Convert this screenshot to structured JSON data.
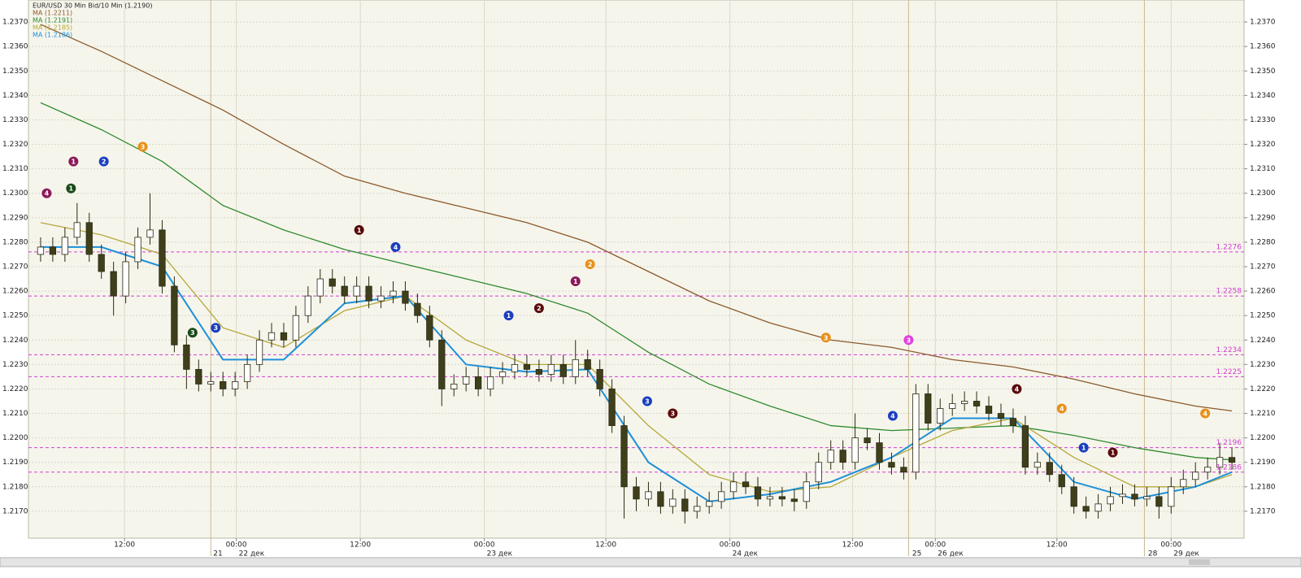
{
  "chart_data": {
    "type": "candlestick",
    "title": "EUR/USD 30 Min Bid/10 Min (1.2190)",
    "xlim": [
      0,
      100
    ],
    "ylim": [
      1.2159,
      1.2379
    ],
    "yticks": [
      {
        "value": 1.217,
        "label": "1.2170"
      },
      {
        "value": 1.218,
        "label": "1.2180"
      },
      {
        "value": 1.219,
        "label": "1.2190"
      },
      {
        "value": 1.22,
        "label": "1.2200"
      },
      {
        "value": 1.221,
        "label": "1.2210"
      },
      {
        "value": 1.222,
        "label": "1.2220"
      },
      {
        "value": 1.223,
        "label": "1.2230"
      },
      {
        "value": 1.224,
        "label": "1.2240"
      },
      {
        "value": 1.225,
        "label": "1.2250"
      },
      {
        "value": 1.226,
        "label": "1.2260"
      },
      {
        "value": 1.227,
        "label": "1.2270"
      },
      {
        "value": 1.228,
        "label": "1.2280"
      },
      {
        "value": 1.229,
        "label": "1.2290"
      },
      {
        "value": 1.23,
        "label": "1.2300"
      },
      {
        "value": 1.231,
        "label": "1.2310"
      },
      {
        "value": 1.232,
        "label": "1.2320"
      },
      {
        "value": 1.233,
        "label": "1.2330"
      },
      {
        "value": 1.234,
        "label": "1.2340"
      },
      {
        "value": 1.235,
        "label": "1.2350"
      },
      {
        "value": 1.236,
        "label": "1.2360"
      },
      {
        "value": 1.237,
        "label": "1.2370"
      }
    ],
    "xticks": [
      {
        "value": 7.9,
        "label": "12:00"
      },
      {
        "value": 17.1,
        "label": "00:00"
      },
      {
        "value": 27.3,
        "label": "12:00"
      },
      {
        "value": 37.5,
        "label": "00:00"
      },
      {
        "value": 47.5,
        "label": "12:00"
      },
      {
        "value": 57.7,
        "label": "00:00"
      },
      {
        "value": 67.8,
        "label": "12:00"
      },
      {
        "value": 74.6,
        "label": "00:00"
      },
      {
        "value": 84.6,
        "label": "12:00"
      },
      {
        "value": 94.0,
        "label": "00:00"
      }
    ],
    "date_ticks": [
      {
        "value": 15.2,
        "label": "21"
      },
      {
        "value": 17.3,
        "label": "22 дек"
      },
      {
        "value": 37.7,
        "label": "23 дек"
      },
      {
        "value": 57.9,
        "label": "24 дек"
      },
      {
        "value": 72.7,
        "label": "25"
      },
      {
        "value": 74.8,
        "label": "26 дек"
      },
      {
        "value": 92.1,
        "label": "28"
      },
      {
        "value": 94.2,
        "label": "29 дек"
      }
    ],
    "session_lines": [
      15.0,
      72.4,
      91.8
    ],
    "grid": true,
    "up_color": "#ffffff",
    "down_color": "#3f3f1c",
    "candles": {
      "x": [
        1,
        2,
        3,
        4,
        5,
        6,
        7,
        8,
        9,
        10,
        11,
        12,
        13,
        14,
        15,
        16,
        17,
        18,
        19,
        20,
        21,
        22,
        23,
        24,
        25,
        26,
        27,
        28,
        29,
        30,
        31,
        32,
        33,
        34,
        35,
        36,
        37,
        38,
        39,
        40,
        41,
        42,
        43,
        44,
        45,
        46,
        47,
        48,
        49,
        50,
        51,
        52,
        53,
        54,
        55,
        56,
        57,
        58,
        59,
        60,
        61,
        62,
        63,
        64,
        65,
        66,
        67,
        68,
        69,
        70,
        71,
        72,
        73,
        74,
        75,
        76,
        77,
        78,
        79,
        80,
        81,
        82,
        83,
        84,
        85,
        86,
        87,
        88,
        89,
        90,
        91,
        92,
        93,
        94,
        95,
        96,
        97,
        98,
        99
      ],
      "open": [
        1.2275,
        1.2278,
        1.2275,
        1.2282,
        1.2288,
        1.2275,
        1.2268,
        1.2258,
        1.2272,
        1.2282,
        1.2285,
        1.2262,
        1.2238,
        1.2228,
        1.2222,
        1.2223,
        1.222,
        1.2223,
        1.223,
        1.224,
        1.2243,
        1.224,
        1.225,
        1.2258,
        1.2265,
        1.2262,
        1.2258,
        1.2262,
        1.2256,
        1.2258,
        1.226,
        1.2255,
        1.225,
        1.224,
        1.222,
        1.2222,
        1.2225,
        1.222,
        1.2225,
        1.2227,
        1.223,
        1.2228,
        1.2226,
        1.223,
        1.2225,
        1.2232,
        1.2228,
        1.222,
        1.2205,
        1.218,
        1.2175,
        1.2178,
        1.2172,
        1.2175,
        1.217,
        1.2172,
        1.2174,
        1.2178,
        1.2182,
        1.218,
        1.2175,
        1.2176,
        1.2175,
        1.2174,
        1.2182,
        1.219,
        1.2195,
        1.219,
        1.22,
        1.2198,
        1.219,
        1.2188,
        1.2186,
        1.2218,
        1.2206,
        1.2212,
        1.2214,
        1.2215,
        1.2213,
        1.221,
        1.2208,
        1.2205,
        1.2188,
        1.219,
        1.2185,
        1.218,
        1.2172,
        1.217,
        1.2173,
        1.2176,
        1.2177,
        1.2175,
        1.2176,
        1.2172,
        1.218,
        1.2183,
        1.2186,
        1.2188,
        1.2192
      ],
      "high": [
        1.2282,
        1.2282,
        1.2286,
        1.2296,
        1.2292,
        1.2279,
        1.2272,
        1.2276,
        1.2286,
        1.23,
        1.2289,
        1.2266,
        1.2242,
        1.2232,
        1.2227,
        1.2227,
        1.2227,
        1.2234,
        1.2244,
        1.2247,
        1.2247,
        1.2254,
        1.2262,
        1.2269,
        1.2269,
        1.2266,
        1.2266,
        1.2266,
        1.2262,
        1.2264,
        1.2264,
        1.2259,
        1.2254,
        1.2244,
        1.2226,
        1.2229,
        1.2229,
        1.2229,
        1.2231,
        1.2234,
        1.2234,
        1.2232,
        1.2234,
        1.2234,
        1.224,
        1.2236,
        1.2232,
        1.2224,
        1.2209,
        1.2184,
        1.2182,
        1.2182,
        1.2179,
        1.2179,
        1.2176,
        1.2178,
        1.2182,
        1.2186,
        1.2186,
        1.2184,
        1.218,
        1.218,
        1.2179,
        1.2186,
        1.2194,
        1.2199,
        1.2199,
        1.221,
        1.2204,
        1.2202,
        1.2194,
        1.2192,
        1.2222,
        1.2222,
        1.2216,
        1.2218,
        1.2219,
        1.2219,
        1.2217,
        1.2214,
        1.2212,
        1.2209,
        1.2194,
        1.2194,
        1.2189,
        1.2184,
        1.2176,
        1.2177,
        1.218,
        1.2181,
        1.2181,
        1.218,
        1.218,
        1.2184,
        1.2187,
        1.219,
        1.2192,
        1.2198,
        1.2196
      ],
      "low": [
        1.2272,
        1.2272,
        1.2272,
        1.2279,
        1.2272,
        1.2265,
        1.225,
        1.2255,
        1.2269,
        1.2279,
        1.2259,
        1.2235,
        1.222,
        1.2219,
        1.2219,
        1.2217,
        1.2217,
        1.222,
        1.2227,
        1.2237,
        1.2237,
        1.2237,
        1.2247,
        1.2255,
        1.2259,
        1.2255,
        1.2255,
        1.2253,
        1.2253,
        1.2255,
        1.2252,
        1.2247,
        1.2237,
        1.2213,
        1.2217,
        1.2219,
        1.2217,
        1.2217,
        1.2222,
        1.2224,
        1.2225,
        1.2223,
        1.2223,
        1.2222,
        1.2222,
        1.2225,
        1.2217,
        1.2202,
        1.2167,
        1.217,
        1.2172,
        1.2169,
        1.2169,
        1.2165,
        1.2167,
        1.2169,
        1.2171,
        1.2175,
        1.2177,
        1.2172,
        1.2172,
        1.2172,
        1.217,
        1.2171,
        1.2179,
        1.2187,
        1.2187,
        1.2187,
        1.2195,
        1.2187,
        1.2185,
        1.2183,
        1.2183,
        1.2203,
        1.2203,
        1.2209,
        1.2211,
        1.221,
        1.2207,
        1.2205,
        1.2202,
        1.2185,
        1.2185,
        1.2182,
        1.2177,
        1.2169,
        1.2167,
        1.2167,
        1.217,
        1.2173,
        1.2172,
        1.2172,
        1.2167,
        1.2169,
        1.2177,
        1.218,
        1.2183,
        1.2185,
        1.2187
      ],
      "close": [
        1.2278,
        1.2275,
        1.2282,
        1.2288,
        1.2275,
        1.2268,
        1.2258,
        1.2272,
        1.2282,
        1.2285,
        1.2262,
        1.2238,
        1.2228,
        1.2222,
        1.2223,
        1.222,
        1.2223,
        1.223,
        1.224,
        1.2243,
        1.224,
        1.225,
        1.2258,
        1.2265,
        1.2262,
        1.2258,
        1.2262,
        1.2256,
        1.2258,
        1.226,
        1.2255,
        1.225,
        1.224,
        1.222,
        1.2222,
        1.2225,
        1.222,
        1.2225,
        1.2227,
        1.223,
        1.2228,
        1.2226,
        1.223,
        1.2225,
        1.2232,
        1.2228,
        1.222,
        1.2205,
        1.218,
        1.2175,
        1.2178,
        1.2172,
        1.2175,
        1.217,
        1.2172,
        1.2174,
        1.2178,
        1.2182,
        1.218,
        1.2175,
        1.2176,
        1.2175,
        1.2174,
        1.2182,
        1.219,
        1.2195,
        1.219,
        1.22,
        1.2198,
        1.219,
        1.2188,
        1.2186,
        1.2218,
        1.2206,
        1.2212,
        1.2214,
        1.2215,
        1.2213,
        1.221,
        1.2208,
        1.2205,
        1.2188,
        1.219,
        1.2185,
        1.218,
        1.2172,
        1.217,
        1.2173,
        1.2176,
        1.2177,
        1.2175,
        1.2176,
        1.2172,
        1.218,
        1.2183,
        1.2186,
        1.2188,
        1.2192,
        1.219
      ]
    },
    "series": [
      {
        "name": "MA (1.2211)",
        "color": "#8b5a2b",
        "x": [
          1,
          6,
          11,
          16,
          21,
          26,
          31,
          36,
          41,
          46,
          51,
          56,
          61,
          66,
          71,
          76,
          81,
          86,
          91,
          96,
          99
        ],
        "values": [
          1.2369,
          1.2358,
          1.2346,
          1.2334,
          1.232,
          1.2307,
          1.23,
          1.2294,
          1.2288,
          1.228,
          1.2268,
          1.2256,
          1.2247,
          1.224,
          1.2237,
          1.2232,
          1.2229,
          1.2224,
          1.2218,
          1.2213,
          1.2211
        ]
      },
      {
        "name": "MA (1.2191)",
        "color": "#2e8b2e",
        "x": [
          1,
          6,
          11,
          16,
          21,
          26,
          31,
          36,
          41,
          46,
          51,
          56,
          61,
          66,
          71,
          76,
          81,
          86,
          91,
          96,
          99
        ],
        "values": [
          1.2337,
          1.2326,
          1.2313,
          1.2295,
          1.2285,
          1.2277,
          1.2271,
          1.2265,
          1.2259,
          1.2251,
          1.2235,
          1.2222,
          1.2213,
          1.2205,
          1.2203,
          1.2204,
          1.2205,
          1.2201,
          1.2196,
          1.2192,
          1.2191
        ]
      },
      {
        "name": "MA (1.2185)",
        "color": "#b5a83a",
        "x": [
          1,
          6,
          11,
          16,
          21,
          26,
          31,
          36,
          41,
          46,
          51,
          56,
          61,
          66,
          71,
          76,
          81,
          86,
          91,
          96,
          99
        ],
        "values": [
          1.2288,
          1.2283,
          1.2275,
          1.2245,
          1.2237,
          1.2252,
          1.2258,
          1.224,
          1.223,
          1.223,
          1.2205,
          1.2185,
          1.2178,
          1.218,
          1.2192,
          1.2203,
          1.2208,
          1.2192,
          1.218,
          1.218,
          1.2185
        ]
      },
      {
        "name": "MA (1.2186)",
        "color": "#1e90d8",
        "x": [
          1,
          6,
          11,
          16,
          21,
          26,
          31,
          36,
          41,
          46,
          51,
          56,
          61,
          66,
          71,
          76,
          81,
          86,
          91,
          96,
          99
        ],
        "values": [
          1.2278,
          1.2278,
          1.227,
          1.2232,
          1.2232,
          1.2255,
          1.2258,
          1.223,
          1.2227,
          1.2228,
          1.219,
          1.2174,
          1.2177,
          1.2182,
          1.2192,
          1.2208,
          1.2208,
          1.2182,
          1.2175,
          1.218,
          1.2186
        ]
      }
    ],
    "level_color": "#d040d0",
    "levels": [
      {
        "value": 1.2276,
        "label": "1.2276"
      },
      {
        "value": 1.2258,
        "label": "1.2258"
      },
      {
        "value": 1.2234,
        "label": "1.2234"
      },
      {
        "value": 1.2225,
        "label": "1.2225"
      },
      {
        "value": 1.2196,
        "label": "1.2196"
      },
      {
        "value": 1.2186,
        "label": "1.2186"
      }
    ],
    "markers": [
      {
        "x": 1.5,
        "y": 1.23,
        "label": "4",
        "color": "#8b1a5a"
      },
      {
        "x": 3.5,
        "y": 1.2302,
        "label": "1",
        "color": "#1a4a1a"
      },
      {
        "x": 3.7,
        "y": 1.2313,
        "label": "1",
        "color": "#8b1a5a"
      },
      {
        "x": 6.2,
        "y": 1.2313,
        "label": "2",
        "color": "#1a3fbf"
      },
      {
        "x": 9.4,
        "y": 1.2319,
        "label": "3",
        "color": "#e8901a"
      },
      {
        "x": 13.5,
        "y": 1.2243,
        "label": "3",
        "color": "#1a4a1a"
      },
      {
        "x": 15.4,
        "y": 1.2245,
        "label": "3",
        "color": "#1a3fbf"
      },
      {
        "x": 27.2,
        "y": 1.2285,
        "label": "1",
        "color": "#5a0a0a"
      },
      {
        "x": 30.2,
        "y": 1.2278,
        "label": "4",
        "color": "#1a3fbf"
      },
      {
        "x": 39.5,
        "y": 1.225,
        "label": "1",
        "color": "#1a3fbf"
      },
      {
        "x": 42,
        "y": 1.2253,
        "label": "2",
        "color": "#5a0a0a"
      },
      {
        "x": 45,
        "y": 1.2264,
        "label": "1",
        "color": "#8b1a5a"
      },
      {
        "x": 46.2,
        "y": 1.2271,
        "label": "2",
        "color": "#e8901a"
      },
      {
        "x": 50.9,
        "y": 1.2215,
        "label": "3",
        "color": "#1a3fbf"
      },
      {
        "x": 53,
        "y": 1.221,
        "label": "3",
        "color": "#5a0a0a"
      },
      {
        "x": 65.6,
        "y": 1.2241,
        "label": "3",
        "color": "#e8901a"
      },
      {
        "x": 71.1,
        "y": 1.2209,
        "label": "4",
        "color": "#1a3fbf"
      },
      {
        "x": 72.4,
        "y": 1.224,
        "label": "3",
        "color": "#e040e0"
      },
      {
        "x": 81.3,
        "y": 1.222,
        "label": "4",
        "color": "#5a0a0a"
      },
      {
        "x": 85,
        "y": 1.2212,
        "label": "4",
        "color": "#e8901a"
      },
      {
        "x": 86.8,
        "y": 1.2196,
        "label": "1",
        "color": "#1a3fbf"
      },
      {
        "x": 89.2,
        "y": 1.2194,
        "label": "1",
        "color": "#5a0a0a"
      },
      {
        "x": 96.8,
        "y": 1.221,
        "label": "4",
        "color": "#e8901a"
      }
    ]
  }
}
